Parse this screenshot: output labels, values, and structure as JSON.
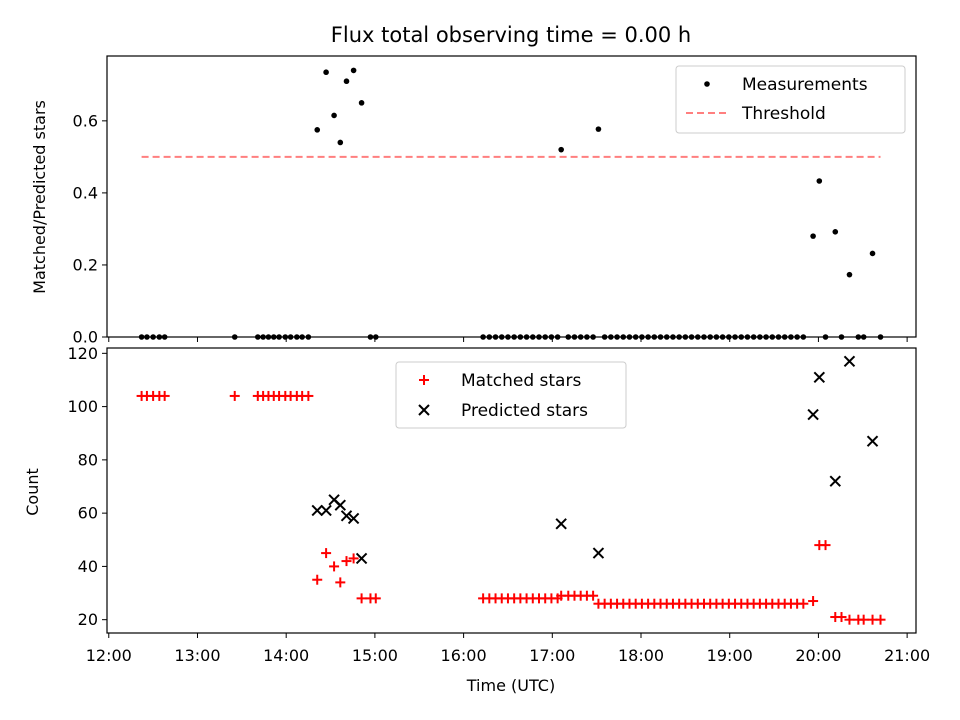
{
  "chart_data": [
    {
      "type": "scatter",
      "title": "Flux total observing time = 0.00 h",
      "ylabel": "Matched/Predicted stars",
      "xlabel": "",
      "xlim_hours": [
        11.98,
        21.1
      ],
      "ylim": [
        0,
        0.78
      ],
      "yticks": [
        0.0,
        0.2,
        0.4,
        0.6
      ],
      "ytick_labels": [
        "0.0",
        "0.2",
        "0.4",
        "0.6"
      ],
      "legend_position": "top-right",
      "series": [
        {
          "name": "Measurements",
          "color": "#000000",
          "marker": "dot",
          "x": [
            12.37,
            12.43,
            12.5,
            12.57,
            12.63,
            13.42,
            13.68,
            13.74,
            13.8,
            13.86,
            13.92,
            13.99,
            14.05,
            14.12,
            14.18,
            14.25,
            14.35,
            14.45,
            14.54,
            14.61,
            14.68,
            14.76,
            14.85,
            14.95,
            15.01,
            16.22,
            16.29,
            16.36,
            16.43,
            16.5,
            16.57,
            16.64,
            16.71,
            16.78,
            16.85,
            16.92,
            16.99,
            17.06,
            17.1,
            17.18,
            17.25,
            17.32,
            17.39,
            17.46,
            17.52,
            17.59,
            17.66,
            17.73,
            17.8,
            17.87,
            17.94,
            18.01,
            18.08,
            18.15,
            18.22,
            18.29,
            18.36,
            18.43,
            18.5,
            18.57,
            18.64,
            18.71,
            18.78,
            18.85,
            18.92,
            18.99,
            19.06,
            19.13,
            19.2,
            19.27,
            19.34,
            19.41,
            19.48,
            19.55,
            19.62,
            19.69,
            19.76,
            19.83,
            19.94,
            20.01,
            20.08,
            20.19,
            20.26,
            20.35,
            20.45,
            20.51,
            20.61,
            20.7
          ],
          "y": [
            0,
            0,
            0,
            0,
            0,
            0,
            0,
            0,
            0,
            0,
            0,
            0,
            0,
            0,
            0,
            0,
            0.575,
            0.735,
            0.615,
            0.54,
            0.71,
            0.74,
            0.65,
            0,
            0,
            0,
            0,
            0,
            0,
            0,
            0,
            0,
            0,
            0,
            0,
            0,
            0,
            0,
            0.52,
            0,
            0,
            0,
            0,
            0,
            0.577,
            0,
            0,
            0,
            0,
            0,
            0,
            0,
            0,
            0,
            0,
            0,
            0,
            0,
            0,
            0,
            0,
            0,
            0,
            0,
            0,
            0,
            0,
            0,
            0,
            0,
            0,
            0,
            0,
            0,
            0,
            0,
            0,
            0,
            0.28,
            0.433,
            0,
            0.292,
            0,
            0.173,
            0,
            0,
            0.232,
            0
          ]
        },
        {
          "name": "Threshold",
          "color": "#ff7f7f",
          "style": "dashed",
          "x": [
            12.37,
            20.7
          ],
          "y": [
            0.5,
            0.5
          ]
        }
      ]
    },
    {
      "type": "scatter",
      "title": "",
      "xlabel": "Time (UTC)",
      "ylabel": "Count",
      "xlim_hours": [
        11.98,
        21.1
      ],
      "ylim": [
        15,
        122
      ],
      "yticks": [
        20,
        40,
        60,
        80,
        100,
        120
      ],
      "ytick_labels": [
        "20",
        "40",
        "60",
        "80",
        "100",
        "120"
      ],
      "xticks_hours": [
        12,
        13,
        14,
        15,
        16,
        17,
        18,
        19,
        20,
        21
      ],
      "xtick_labels": [
        "12:00",
        "13:00",
        "14:00",
        "15:00",
        "16:00",
        "17:00",
        "18:00",
        "19:00",
        "20:00",
        "21:00"
      ],
      "legend_position": "top-center",
      "series": [
        {
          "name": "Matched stars",
          "color": "#ff0000",
          "marker": "plus",
          "x": [
            12.37,
            12.43,
            12.5,
            12.57,
            12.63,
            13.42,
            13.68,
            13.74,
            13.8,
            13.86,
            13.92,
            13.99,
            14.05,
            14.12,
            14.18,
            14.25,
            14.35,
            14.45,
            14.54,
            14.61,
            14.68,
            14.76,
            14.85,
            14.95,
            15.01,
            16.22,
            16.29,
            16.36,
            16.43,
            16.5,
            16.57,
            16.64,
            16.71,
            16.78,
            16.85,
            16.92,
            16.99,
            17.06,
            17.1,
            17.18,
            17.25,
            17.32,
            17.39,
            17.46,
            17.52,
            17.59,
            17.66,
            17.73,
            17.8,
            17.87,
            17.94,
            18.01,
            18.08,
            18.15,
            18.22,
            18.29,
            18.36,
            18.43,
            18.5,
            18.57,
            18.64,
            18.71,
            18.78,
            18.85,
            18.92,
            18.99,
            19.06,
            19.13,
            19.2,
            19.27,
            19.34,
            19.41,
            19.48,
            19.55,
            19.62,
            19.69,
            19.76,
            19.83,
            19.94,
            20.01,
            20.08,
            20.19,
            20.26,
            20.35,
            20.45,
            20.51,
            20.61,
            20.7
          ],
          "y": [
            104,
            104,
            104,
            104,
            104,
            104,
            104,
            104,
            104,
            104,
            104,
            104,
            104,
            104,
            104,
            104,
            35,
            45,
            40,
            34,
            42,
            43,
            28,
            28,
            28,
            28,
            28,
            28,
            28,
            28,
            28,
            28,
            28,
            28,
            28,
            28,
            28,
            28,
            29,
            29,
            29,
            29,
            29,
            29,
            26,
            26,
            26,
            26,
            26,
            26,
            26,
            26,
            26,
            26,
            26,
            26,
            26,
            26,
            26,
            26,
            26,
            26,
            26,
            26,
            26,
            26,
            26,
            26,
            26,
            26,
            26,
            26,
            26,
            26,
            26,
            26,
            26,
            26,
            27,
            48,
            48,
            21,
            21,
            20,
            20,
            20,
            20,
            20
          ]
        },
        {
          "name": "Predicted stars",
          "color": "#000000",
          "marker": "x",
          "x": [
            14.35,
            14.45,
            14.54,
            14.61,
            14.68,
            14.76,
            14.85,
            17.1,
            17.52,
            19.94,
            20.01,
            20.19,
            20.35,
            20.61
          ],
          "y": [
            61,
            61,
            65,
            63,
            59,
            58,
            43,
            56,
            45,
            97,
            111,
            72,
            117,
            87
          ]
        }
      ]
    }
  ]
}
